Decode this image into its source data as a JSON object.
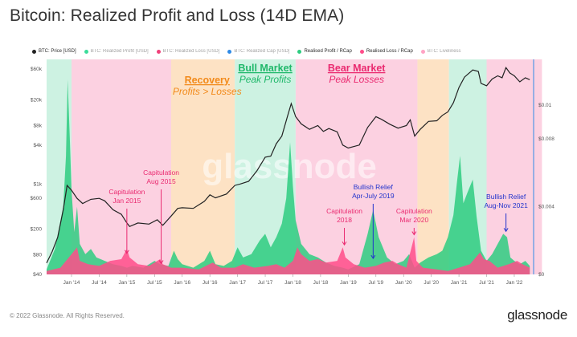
{
  "header": {
    "title": "Bitcoin: Realized Profit and Loss (14D EMA)"
  },
  "legend": [
    {
      "label": "BTC: Price [USD]",
      "color": "#222222",
      "muted": false
    },
    {
      "label": "BTC: Realized Profit [USD]",
      "color": "#3bdc9a",
      "muted": true
    },
    {
      "label": "BTC: Realized Loss [USD]",
      "color": "#f0407a",
      "muted": true
    },
    {
      "label": "BTC: Realized Cap [USD]",
      "color": "#2f8ae6",
      "muted": true
    },
    {
      "label": "Realised Profit / RCap",
      "color": "#2ecc80",
      "muted": false
    },
    {
      "label": "Realised Loss / RCap",
      "color": "#ff4d8a",
      "muted": false
    },
    {
      "label": "BTC: Liveliness",
      "color": "#ffa3c4",
      "muted": true
    }
  ],
  "chart_data": {
    "type": "area",
    "title": "Bitcoin: Realized Profit and Loss (14D EMA)",
    "x_ticks": [
      "Jan '14",
      "Jul '14",
      "Jan '15",
      "Jul '15",
      "Jan '16",
      "Jul '16",
      "Jan '17",
      "Jul '17",
      "Jan '18",
      "Jul '18",
      "Jan '19",
      "Jul '19",
      "Jan '20",
      "Jul '20",
      "Jan '21",
      "Jul '21",
      "Jan '22"
    ],
    "y_left_ticks": [
      "$40",
      "$80",
      "$200",
      "$600",
      "$1k",
      "$4k",
      "$8k",
      "$20k",
      "$60k"
    ],
    "y_left_values": [
      40,
      80,
      200,
      600,
      1000,
      4000,
      8000,
      20000,
      60000
    ],
    "y_right_ticks": [
      "$0",
      "$0.004",
      "$0.008",
      "$0.01"
    ],
    "y_right_values": [
      0,
      0.004,
      0.008,
      0.01
    ],
    "regimes": [
      {
        "start": 2013.55,
        "end": 2014.0,
        "kind": "bull",
        "color": "#cdf2e2"
      },
      {
        "start": 2014.0,
        "end": 2015.8,
        "kind": "bear",
        "color": "#fcd1e1"
      },
      {
        "start": 2015.8,
        "end": 2016.95,
        "kind": "recovery",
        "color": "#fde2c4"
      },
      {
        "start": 2016.95,
        "end": 2018.05,
        "kind": "bull",
        "color": "#cdf2e2"
      },
      {
        "start": 2018.05,
        "end": 2020.25,
        "kind": "bear",
        "color": "#fcd1e1"
      },
      {
        "start": 2020.25,
        "end": 2020.82,
        "kind": "recovery",
        "color": "#fde2c4"
      },
      {
        "start": 2020.82,
        "end": 2021.5,
        "kind": "bull",
        "color": "#cdf2e2"
      },
      {
        "start": 2021.5,
        "end": 2022.5,
        "kind": "bear",
        "color": "#fcd1e1"
      }
    ],
    "price_series": {
      "name": "BTC: Price [USD]",
      "color": "#222222",
      "points": [
        [
          2013.55,
          60
        ],
        [
          2013.65,
          90
        ],
        [
          2013.75,
          150
        ],
        [
          2013.85,
          400
        ],
        [
          2013.92,
          950
        ],
        [
          2014.0,
          800
        ],
        [
          2014.1,
          600
        ],
        [
          2014.2,
          500
        ],
        [
          2014.35,
          580
        ],
        [
          2014.5,
          600
        ],
        [
          2014.6,
          550
        ],
        [
          2014.75,
          400
        ],
        [
          2014.9,
          340
        ],
        [
          2015.0,
          250
        ],
        [
          2015.05,
          220
        ],
        [
          2015.2,
          250
        ],
        [
          2015.4,
          240
        ],
        [
          2015.55,
          280
        ],
        [
          2015.65,
          230
        ],
        [
          2015.8,
          320
        ],
        [
          2015.92,
          420
        ],
        [
          2016.0,
          430
        ],
        [
          2016.2,
          420
        ],
        [
          2016.4,
          540
        ],
        [
          2016.5,
          680
        ],
        [
          2016.6,
          610
        ],
        [
          2016.8,
          700
        ],
        [
          2016.95,
          950
        ],
        [
          2017.05,
          1000
        ],
        [
          2017.2,
          1100
        ],
        [
          2017.35,
          1600
        ],
        [
          2017.5,
          2600
        ],
        [
          2017.6,
          2700
        ],
        [
          2017.7,
          4200
        ],
        [
          2017.8,
          5500
        ],
        [
          2017.9,
          11000
        ],
        [
          2017.97,
          17500
        ],
        [
          2018.05,
          11000
        ],
        [
          2018.15,
          8500
        ],
        [
          2018.3,
          7000
        ],
        [
          2018.45,
          8000
        ],
        [
          2018.55,
          6500
        ],
        [
          2018.65,
          7200
        ],
        [
          2018.8,
          6400
        ],
        [
          2018.9,
          4000
        ],
        [
          2019.0,
          3600
        ],
        [
          2019.2,
          4000
        ],
        [
          2019.35,
          7500
        ],
        [
          2019.5,
          11000
        ],
        [
          2019.6,
          10000
        ],
        [
          2019.75,
          8400
        ],
        [
          2019.9,
          7300
        ],
        [
          2020.05,
          8000
        ],
        [
          2020.12,
          9800
        ],
        [
          2020.2,
          5500
        ],
        [
          2020.3,
          7000
        ],
        [
          2020.45,
          9300
        ],
        [
          2020.6,
          9500
        ],
        [
          2020.7,
          11500
        ],
        [
          2020.8,
          13000
        ],
        [
          2020.9,
          18000
        ],
        [
          2021.0,
          31000
        ],
        [
          2021.1,
          45000
        ],
        [
          2021.25,
          58000
        ],
        [
          2021.35,
          55000
        ],
        [
          2021.4,
          36000
        ],
        [
          2021.5,
          33000
        ],
        [
          2021.6,
          42000
        ],
        [
          2021.7,
          47000
        ],
        [
          2021.78,
          44000
        ],
        [
          2021.85,
          63000
        ],
        [
          2021.92,
          52000
        ],
        [
          2022.0,
          47000
        ],
        [
          2022.1,
          38000
        ],
        [
          2022.2,
          44000
        ],
        [
          2022.28,
          41000
        ]
      ]
    },
    "profit_series": {
      "name": "Realised Profit / RCap",
      "color": "#2ecc80",
      "points": [
        [
          2013.55,
          0.0003
        ],
        [
          2013.7,
          0.0015
        ],
        [
          2013.85,
          0.004
        ],
        [
          2013.9,
          0.007
        ],
        [
          2013.93,
          0.0115
        ],
        [
          2013.97,
          0.008
        ],
        [
          2014.0,
          0.005
        ],
        [
          2014.05,
          0.0025
        ],
        [
          2014.1,
          0.004
        ],
        [
          2014.15,
          0.0018
        ],
        [
          2014.25,
          0.0012
        ],
        [
          2014.35,
          0.0015
        ],
        [
          2014.45,
          0.001
        ],
        [
          2014.6,
          0.0008
        ],
        [
          2014.75,
          0.0006
        ],
        [
          2014.9,
          0.0005
        ],
        [
          2015.0,
          0.0004
        ],
        [
          2015.1,
          0.0005
        ],
        [
          2015.3,
          0.0004
        ],
        [
          2015.5,
          0.0008
        ],
        [
          2015.6,
          0.0006
        ],
        [
          2015.75,
          0.0005
        ],
        [
          2015.85,
          0.0014
        ],
        [
          2015.92,
          0.0009
        ],
        [
          2016.0,
          0.0006
        ],
        [
          2016.2,
          0.0004
        ],
        [
          2016.4,
          0.0008
        ],
        [
          2016.5,
          0.0014
        ],
        [
          2016.6,
          0.0006
        ],
        [
          2016.75,
          0.0005
        ],
        [
          2016.9,
          0.0008
        ],
        [
          2017.0,
          0.0016
        ],
        [
          2017.1,
          0.001
        ],
        [
          2017.25,
          0.0012
        ],
        [
          2017.4,
          0.002
        ],
        [
          2017.5,
          0.0024
        ],
        [
          2017.6,
          0.0016
        ],
        [
          2017.7,
          0.0022
        ],
        [
          2017.8,
          0.003
        ],
        [
          2017.88,
          0.0045
        ],
        [
          2017.95,
          0.0078
        ],
        [
          2018.0,
          0.0052
        ],
        [
          2018.05,
          0.0032
        ],
        [
          2018.15,
          0.0018
        ],
        [
          2018.3,
          0.0012
        ],
        [
          2018.45,
          0.001
        ],
        [
          2018.6,
          0.0007
        ],
        [
          2018.75,
          0.0005
        ],
        [
          2018.9,
          0.0004
        ],
        [
          2019.0,
          0.0003
        ],
        [
          2019.2,
          0.0006
        ],
        [
          2019.35,
          0.0024
        ],
        [
          2019.45,
          0.0038
        ],
        [
          2019.55,
          0.0022
        ],
        [
          2019.7,
          0.001
        ],
        [
          2019.85,
          0.0006
        ],
        [
          2020.0,
          0.0008
        ],
        [
          2020.1,
          0.0012
        ],
        [
          2020.2,
          0.0004
        ],
        [
          2020.3,
          0.0007
        ],
        [
          2020.45,
          0.001
        ],
        [
          2020.6,
          0.0012
        ],
        [
          2020.7,
          0.0014
        ],
        [
          2020.8,
          0.0022
        ],
        [
          2020.9,
          0.0035
        ],
        [
          2020.97,
          0.0056
        ],
        [
          2021.02,
          0.007
        ],
        [
          2021.08,
          0.0042
        ],
        [
          2021.15,
          0.0048
        ],
        [
          2021.25,
          0.0056
        ],
        [
          2021.32,
          0.0034
        ],
        [
          2021.4,
          0.0014
        ],
        [
          2021.5,
          0.0008
        ],
        [
          2021.6,
          0.0012
        ],
        [
          2021.7,
          0.0018
        ],
        [
          2021.8,
          0.0024
        ],
        [
          2021.87,
          0.0022
        ],
        [
          2021.93,
          0.001
        ],
        [
          2022.0,
          0.0008
        ],
        [
          2022.1,
          0.0006
        ],
        [
          2022.2,
          0.0008
        ],
        [
          2022.28,
          0.0005
        ]
      ]
    },
    "loss_series": {
      "name": "Realised Loss / RCap",
      "color": "#ff4d8a",
      "points": [
        [
          2013.55,
          0.0002
        ],
        [
          2013.8,
          0.0004
        ],
        [
          2014.0,
          0.0012
        ],
        [
          2014.1,
          0.0016
        ],
        [
          2014.15,
          0.0008
        ],
        [
          2014.3,
          0.0006
        ],
        [
          2014.5,
          0.0005
        ],
        [
          2014.7,
          0.0008
        ],
        [
          2014.9,
          0.0009
        ],
        [
          2015.0,
          0.0015
        ],
        [
          2015.05,
          0.001
        ],
        [
          2015.2,
          0.0006
        ],
        [
          2015.4,
          0.0005
        ],
        [
          2015.6,
          0.0009
        ],
        [
          2015.65,
          0.0006
        ],
        [
          2015.8,
          0.0004
        ],
        [
          2016.0,
          0.0004
        ],
        [
          2016.3,
          0.0003
        ],
        [
          2016.55,
          0.0007
        ],
        [
          2016.7,
          0.0004
        ],
        [
          2016.95,
          0.0004
        ],
        [
          2017.1,
          0.0006
        ],
        [
          2017.3,
          0.0004
        ],
        [
          2017.55,
          0.0005
        ],
        [
          2017.7,
          0.0006
        ],
        [
          2017.85,
          0.0004
        ],
        [
          2018.0,
          0.0008
        ],
        [
          2018.08,
          0.0016
        ],
        [
          2018.15,
          0.0012
        ],
        [
          2018.3,
          0.0008
        ],
        [
          2018.45,
          0.0009
        ],
        [
          2018.6,
          0.0007
        ],
        [
          2018.8,
          0.0008
        ],
        [
          2018.9,
          0.0016
        ],
        [
          2018.95,
          0.001
        ],
        [
          2019.1,
          0.0006
        ],
        [
          2019.3,
          0.0004
        ],
        [
          2019.5,
          0.0005
        ],
        [
          2019.65,
          0.0007
        ],
        [
          2019.8,
          0.0008
        ],
        [
          2019.9,
          0.0006
        ],
        [
          2020.05,
          0.0004
        ],
        [
          2020.19,
          0.0022
        ],
        [
          2020.23,
          0.0008
        ],
        [
          2020.35,
          0.0004
        ],
        [
          2020.6,
          0.0003
        ],
        [
          2020.8,
          0.0002
        ],
        [
          2021.0,
          0.0004
        ],
        [
          2021.2,
          0.0006
        ],
        [
          2021.38,
          0.0013
        ],
        [
          2021.45,
          0.0009
        ],
        [
          2021.55,
          0.0008
        ],
        [
          2021.7,
          0.0004
        ],
        [
          2021.9,
          0.0006
        ],
        [
          2022.05,
          0.0008
        ],
        [
          2022.15,
          0.0006
        ],
        [
          2022.28,
          0.0004
        ]
      ]
    },
    "regime_labels": [
      {
        "title": "Recovery",
        "subtitle": "Profits > Losses",
        "x": 2016.45,
        "color": "#f28a1a",
        "underline": true
      },
      {
        "title": "Bull Market",
        "subtitle": "Peak Profits",
        "x": 2017.5,
        "color": "#1fb86a",
        "underline": true
      },
      {
        "title": "Bear Market",
        "subtitle": "Peak Losses",
        "x": 2019.15,
        "color": "#ea2a70",
        "underline": true
      }
    ],
    "annotations": [
      {
        "lines": [
          "Capitulation",
          "Jan 2015"
        ],
        "x": 2015.0,
        "color": "#ea2a70",
        "arrow_to": 0.0011
      },
      {
        "lines": [
          "Capitulation",
          "Aug 2015"
        ],
        "x": 2015.62,
        "color": "#ea2a70",
        "arrow_to": 0.0005
      },
      {
        "lines": [
          "Capitulation",
          "2018"
        ],
        "x": 2018.93,
        "color": "#ea2a70",
        "arrow_to": 0.0016
      },
      {
        "lines": [
          "Bullish Relief",
          "Apr-July 2019"
        ],
        "x": 2019.45,
        "color": "#2233cc",
        "arrow_to": 0.0008
      },
      {
        "lines": [
          "Capitulation",
          "Mar 2020"
        ],
        "x": 2020.19,
        "color": "#ea2a70",
        "arrow_to": 0.0022
      },
      {
        "lines": [
          "Bullish Relief",
          "Aug-Nov 2021"
        ],
        "x": 2021.85,
        "color": "#2233cc",
        "arrow_to": 0.0024
      }
    ],
    "watermark": "glassnode"
  },
  "footer": {
    "copyright": "© 2022 Glassnode. All Rights Reserved.",
    "brand": "glassnode"
  }
}
